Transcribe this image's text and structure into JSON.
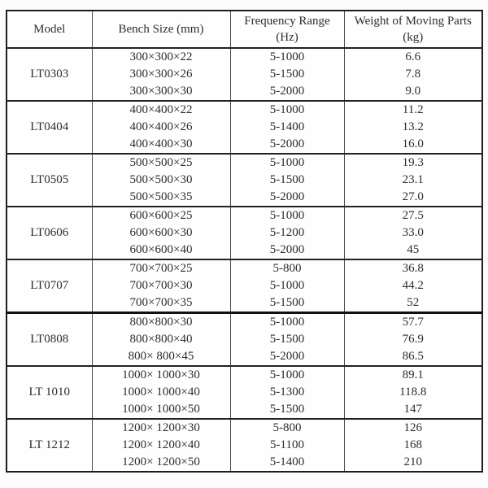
{
  "table": {
    "columns": [
      {
        "key": "model",
        "label": "Model"
      },
      {
        "key": "bench_size",
        "label": "Bench Size (mm)"
      },
      {
        "key": "frequency_range",
        "label": "Frequency Range (Hz)"
      },
      {
        "key": "weight",
        "label": "Weight of Moving Parts (kg)"
      }
    ],
    "groups": [
      {
        "model": "LT0303",
        "rows": [
          {
            "bench_size": "300×300×22",
            "frequency_range": "5-1000",
            "weight": "6.6"
          },
          {
            "bench_size": "300×300×26",
            "frequency_range": "5-1500",
            "weight": "7.8"
          },
          {
            "bench_size": "300×300×30",
            "frequency_range": "5-2000",
            "weight": "9.0"
          }
        ]
      },
      {
        "model": "LT0404",
        "rows": [
          {
            "bench_size": "400×400×22",
            "frequency_range": "5-1000",
            "weight": "11.2"
          },
          {
            "bench_size": "400×400×26",
            "frequency_range": "5-1400",
            "weight": "13.2"
          },
          {
            "bench_size": "400×400×30",
            "frequency_range": "5-2000",
            "weight": "16.0"
          }
        ]
      },
      {
        "model": "LT0505",
        "rows": [
          {
            "bench_size": "500×500×25",
            "frequency_range": "5-1000",
            "weight": "19.3"
          },
          {
            "bench_size": "500×500×30",
            "frequency_range": "5-1500",
            "weight": "23.1"
          },
          {
            "bench_size": "500×500×35",
            "frequency_range": "5-2000",
            "weight": "27.0"
          }
        ]
      },
      {
        "model": "LT0606",
        "rows": [
          {
            "bench_size": "600×600×25",
            "frequency_range": "5-1000",
            "weight": "27.5"
          },
          {
            "bench_size": "600×600×30",
            "frequency_range": "5-1200",
            "weight": "33.0"
          },
          {
            "bench_size": "600×600×40",
            "frequency_range": "5-2000",
            "weight": "45"
          }
        ]
      },
      {
        "model": "LT0707",
        "rows": [
          {
            "bench_size": "700×700×25",
            "frequency_range": "5-800",
            "weight": "36.8"
          },
          {
            "bench_size": "700×700×30",
            "frequency_range": "5-1000",
            "weight": "44.2"
          },
          {
            "bench_size": "700×700×35",
            "frequency_range": "5-1500",
            "weight": "52"
          }
        ]
      },
      {
        "model": "LT0808",
        "thick_top": true,
        "rows": [
          {
            "bench_size": "800×800×30",
            "frequency_range": "5-1000",
            "weight": "57.7"
          },
          {
            "bench_size": "800×800×40",
            "frequency_range": "5-1500",
            "weight": "76.9"
          },
          {
            "bench_size": "800× 800×45",
            "frequency_range": "5-2000",
            "weight": "86.5"
          }
        ]
      },
      {
        "model": "LT 1010",
        "rows": [
          {
            "bench_size": "1000× 1000×30",
            "frequency_range": "5-1000",
            "weight": "89.1"
          },
          {
            "bench_size": "1000× 1000×40",
            "frequency_range": "5-1300",
            "weight": "118.8"
          },
          {
            "bench_size": "1000× 1000×50",
            "frequency_range": "5-1500",
            "weight": "147"
          }
        ]
      },
      {
        "model": "LT 1212",
        "rows": [
          {
            "bench_size": "1200× 1200×30",
            "frequency_range": "5-800",
            "weight": "126"
          },
          {
            "bench_size": "1200× 1200×40",
            "frequency_range": "5-1100",
            "weight": "168"
          },
          {
            "bench_size": "1200× 1200×50",
            "frequency_range": "5-1400",
            "weight": "210"
          }
        ]
      }
    ]
  }
}
